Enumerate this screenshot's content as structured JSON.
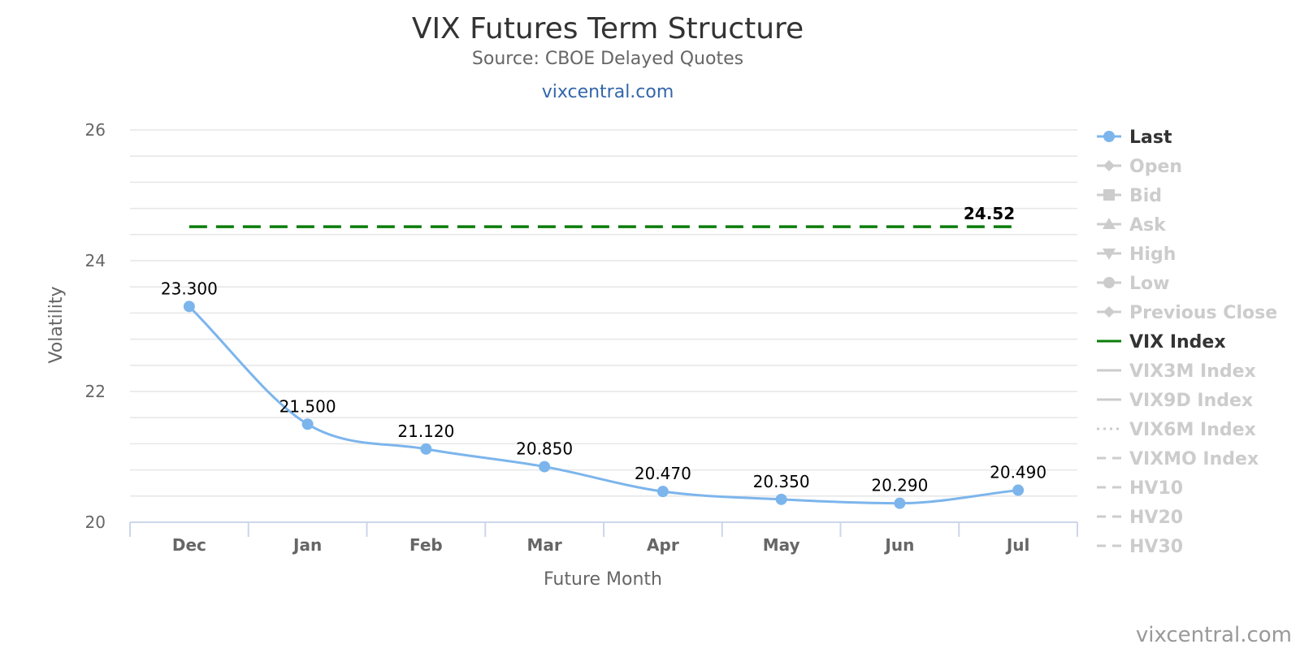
{
  "chart_data": {
    "type": "line",
    "title": "VIX Futures Term Structure",
    "subtitle": "Source: CBOE Delayed Quotes",
    "link_text": "vixcentral.com",
    "credit": "vixcentral.com",
    "xlabel": "Future Month",
    "ylabel": "Volatility",
    "ylim": [
      20,
      26
    ],
    "y_ticks": [
      "20",
      "22",
      "24",
      "26"
    ],
    "grid": true,
    "legend_position": "right",
    "categories": [
      "Dec",
      "Jan",
      "Feb",
      "Mar",
      "Apr",
      "May",
      "Jun",
      "Jul"
    ],
    "series": [
      {
        "name": "Last",
        "color": "#7cb5ec",
        "values": [
          23.3,
          21.5,
          21.12,
          20.85,
          20.47,
          20.35,
          20.29,
          20.49
        ],
        "labels": [
          "23.300",
          "21.500",
          "21.120",
          "20.850",
          "20.470",
          "20.350",
          "20.290",
          "20.490"
        ]
      },
      {
        "name": "VIX Index",
        "color": "#0a7d0a",
        "value": 24.52,
        "label": "24.52",
        "style": "dashed"
      }
    ],
    "legend": [
      {
        "name": "Last",
        "active": true,
        "symbol": "circle",
        "line": "solid",
        "color": "#7cb5ec"
      },
      {
        "name": "Open",
        "active": false,
        "symbol": "diamond",
        "line": "solid"
      },
      {
        "name": "Bid",
        "active": false,
        "symbol": "square",
        "line": "solid"
      },
      {
        "name": "Ask",
        "active": false,
        "symbol": "triangle",
        "line": "solid"
      },
      {
        "name": "High",
        "active": false,
        "symbol": "triangle-down",
        "line": "solid"
      },
      {
        "name": "Low",
        "active": false,
        "symbol": "circle",
        "line": "solid"
      },
      {
        "name": "Previous Close",
        "active": false,
        "symbol": "diamond",
        "line": "solid"
      },
      {
        "name": "VIX Index",
        "active": true,
        "symbol": "none",
        "line": "solid",
        "color": "#0a7d0a"
      },
      {
        "name": "VIX3M Index",
        "active": false,
        "symbol": "none",
        "line": "solid"
      },
      {
        "name": "VIX9D Index",
        "active": false,
        "symbol": "none",
        "line": "solid"
      },
      {
        "name": "VIX6M Index",
        "active": false,
        "symbol": "none",
        "line": "dotted"
      },
      {
        "name": "VIXMO Index",
        "active": false,
        "symbol": "none",
        "line": "dashed"
      },
      {
        "name": "HV10",
        "active": false,
        "symbol": "none",
        "line": "dashed"
      },
      {
        "name": "HV20",
        "active": false,
        "symbol": "none",
        "line": "dashed"
      },
      {
        "name": "HV30",
        "active": false,
        "symbol": "none",
        "line": "dashed"
      }
    ],
    "colors": {
      "grid": "#e6e6e6",
      "axis": "#ccd6eb",
      "inactive_legend": "#cccccc",
      "active_legend_text": "#333333"
    }
  }
}
